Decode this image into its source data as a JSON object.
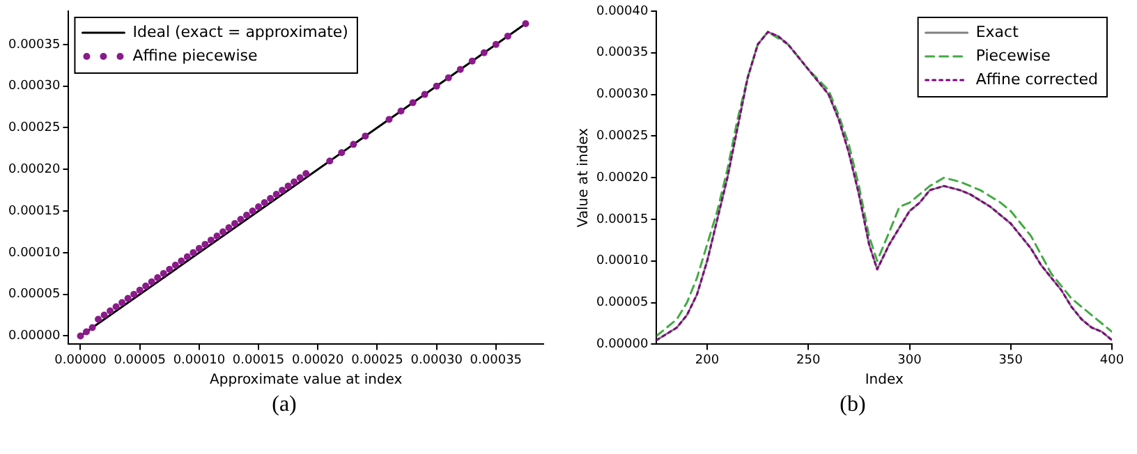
{
  "chart_data": [
    {
      "type": "scatter",
      "xlabel": "Approximate value at index",
      "annotations": [
        "(a)"
      ],
      "legend": "top left",
      "xlim": [
        -1e-05,
        0.00039
      ],
      "ylim": [
        -1e-05,
        0.00039
      ],
      "xticks": [
        {
          "value": 0,
          "label": "0.00000"
        },
        {
          "value": 5e-05,
          "label": "0.00005"
        },
        {
          "value": 0.0001,
          "label": "0.00010"
        },
        {
          "value": 0.00015,
          "label": "0.00015"
        },
        {
          "value": 0.0002,
          "label": "0.00020"
        },
        {
          "value": 0.00025,
          "label": "0.00025"
        },
        {
          "value": 0.0003,
          "label": "0.00030"
        },
        {
          "value": 0.00035,
          "label": "0.00035"
        }
      ],
      "yticks": [
        {
          "value": 0,
          "label": "0.00000"
        },
        {
          "value": 5e-05,
          "label": "0.00005"
        },
        {
          "value": 0.0001,
          "label": "0.00010"
        },
        {
          "value": 0.00015,
          "label": "0.00015"
        },
        {
          "value": 0.0002,
          "label": "0.00020"
        },
        {
          "value": 0.00025,
          "label": "0.00025"
        },
        {
          "value": 0.0003,
          "label": "0.00030"
        },
        {
          "value": 0.00035,
          "label": "0.00035"
        }
      ],
      "series": [
        {
          "name": "Ideal (exact = approximate)",
          "type": "line",
          "color": "#000000",
          "marker": "none",
          "line_style": "solid",
          "x": [
            0,
            0.000375
          ],
          "values": [
            0,
            0.000375
          ]
        },
        {
          "name": "Affine piecewise",
          "color": "#8b1a8b",
          "marker": "circle",
          "x": [
            0,
            5e-06,
            1e-05,
            1.5e-05,
            2e-05,
            2.5e-05,
            3e-05,
            3.5e-05,
            4e-05,
            4.5e-05,
            5e-05,
            5.5e-05,
            6e-05,
            6.5e-05,
            7e-05,
            7.5e-05,
            8e-05,
            8.5e-05,
            9e-05,
            9.5e-05,
            0.0001,
            0.000105,
            0.00011,
            0.000115,
            0.00012,
            0.000125,
            0.00013,
            0.000135,
            0.00014,
            0.000145,
            0.00015,
            0.000155,
            0.00016,
            0.000165,
            0.00017,
            0.000175,
            0.00018,
            0.000185,
            0.00019,
            0.00021,
            0.00022,
            0.00023,
            0.00024,
            0.00026,
            0.00027,
            0.00028,
            0.00029,
            0.0003,
            0.00031,
            0.00032,
            0.00033,
            0.00034,
            0.00035,
            0.00036,
            0.000375
          ],
          "values": [
            0,
            5e-06,
            1e-05,
            2e-05,
            2.5e-05,
            3e-05,
            3.5e-05,
            4e-05,
            4.5e-05,
            5e-05,
            5.5e-05,
            6e-05,
            6.5e-05,
            7e-05,
            7.5e-05,
            8e-05,
            8.5e-05,
            9e-05,
            9.5e-05,
            0.0001,
            0.000105,
            0.00011,
            0.000115,
            0.00012,
            0.000125,
            0.00013,
            0.000135,
            0.00014,
            0.000145,
            0.00015,
            0.000155,
            0.00016,
            0.000165,
            0.00017,
            0.000175,
            0.00018,
            0.000185,
            0.00019,
            0.000195,
            0.00021,
            0.00022,
            0.00023,
            0.00024,
            0.00026,
            0.00027,
            0.00028,
            0.00029,
            0.0003,
            0.00031,
            0.00032,
            0.00033,
            0.00034,
            0.00035,
            0.00036,
            0.000375
          ]
        }
      ]
    },
    {
      "type": "line",
      "xlabel": "Index",
      "ylabel": "Value at index",
      "annotations": [
        "(b)"
      ],
      "legend": "top right",
      "xlim": [
        175,
        400
      ],
      "ylim": [
        0,
        0.0004
      ],
      "xticks": [
        200,
        250,
        300,
        350,
        400
      ],
      "yticks": [
        {
          "value": 0,
          "label": "0.00000"
        },
        {
          "value": 5e-05,
          "label": "0.00005"
        },
        {
          "value": 0.0001,
          "label": "0.00010"
        },
        {
          "value": 0.00015,
          "label": "0.00015"
        },
        {
          "value": 0.0002,
          "label": "0.00020"
        },
        {
          "value": 0.00025,
          "label": "0.00025"
        },
        {
          "value": 0.0003,
          "label": "0.00030"
        },
        {
          "value": 0.00035,
          "label": "0.00035"
        },
        {
          "value": 0.0004,
          "label": "0.00040"
        }
      ],
      "series": [
        {
          "name": "Exact",
          "color": "#808080",
          "line_style": "solid",
          "x": [
            175,
            185,
            190,
            195,
            200,
            205,
            210,
            215,
            220,
            225,
            230,
            235,
            240,
            245,
            250,
            255,
            260,
            265,
            270,
            275,
            280,
            284,
            290,
            295,
            300,
            305,
            310,
            317,
            325,
            330,
            340,
            350,
            355,
            360,
            365,
            370,
            375,
            380,
            385,
            390,
            395,
            400
          ],
          "values": [
            5e-06,
            2e-05,
            3.5e-05,
            6e-05,
            0.0001,
            0.00015,
            0.0002,
            0.00026,
            0.00032,
            0.00036,
            0.000375,
            0.00037,
            0.00036,
            0.000345,
            0.00033,
            0.000315,
            0.0003,
            0.00027,
            0.00023,
            0.00018,
            0.00012,
            9e-05,
            0.00012,
            0.00014,
            0.00016,
            0.00017,
            0.000185,
            0.00019,
            0.000185,
            0.00018,
            0.000165,
            0.000145,
            0.00013,
            0.000115,
            9.5e-05,
            8e-05,
            6.5e-05,
            4.5e-05,
            3e-05,
            2e-05,
            1.5e-05,
            5e-06
          ]
        },
        {
          "name": "Piecewise",
          "color": "#44aa44",
          "line_style": "dashed",
          "x": [
            175,
            185,
            190,
            195,
            200,
            205,
            210,
            215,
            220,
            225,
            230,
            240,
            250,
            260,
            265,
            270,
            275,
            280,
            284,
            290,
            295,
            300,
            310,
            317,
            325,
            335,
            345,
            350,
            360,
            370,
            375,
            380,
            390,
            400
          ],
          "values": [
            1e-05,
            3e-05,
            5e-05,
            8e-05,
            0.00012,
            0.00016,
            0.00021,
            0.00027,
            0.00032,
            0.00036,
            0.000375,
            0.00036,
            0.00033,
            0.000305,
            0.000275,
            0.00024,
            0.00019,
            0.00013,
            0.0001,
            0.000135,
            0.000165,
            0.00017,
            0.00019,
            0.0002,
            0.000195,
            0.000185,
            0.00017,
            0.00016,
            0.00013,
            8.5e-05,
            7e-05,
            5.5e-05,
            3.5e-05,
            1.5e-05
          ]
        },
        {
          "name": "Affine corrected",
          "color": "#800080",
          "line_style": "dotted",
          "x": [
            175,
            185,
            190,
            195,
            200,
            205,
            210,
            215,
            220,
            225,
            230,
            235,
            240,
            245,
            250,
            255,
            260,
            265,
            270,
            275,
            280,
            284,
            290,
            295,
            300,
            305,
            310,
            317,
            325,
            330,
            340,
            350,
            355,
            360,
            365,
            370,
            375,
            380,
            385,
            390,
            395,
            400
          ],
          "values": [
            5e-06,
            2e-05,
            3.5e-05,
            6e-05,
            0.0001,
            0.00015,
            0.0002,
            0.00026,
            0.00032,
            0.00036,
            0.000375,
            0.00037,
            0.00036,
            0.000345,
            0.00033,
            0.000315,
            0.0003,
            0.00027,
            0.00023,
            0.00018,
            0.00012,
            9e-05,
            0.00012,
            0.00014,
            0.00016,
            0.00017,
            0.000185,
            0.00019,
            0.000185,
            0.00018,
            0.000165,
            0.000145,
            0.00013,
            0.000115,
            9.5e-05,
            8e-05,
            6.5e-05,
            4.5e-05,
            3e-05,
            2e-05,
            1.5e-05,
            5e-06
          ]
        }
      ]
    }
  ]
}
